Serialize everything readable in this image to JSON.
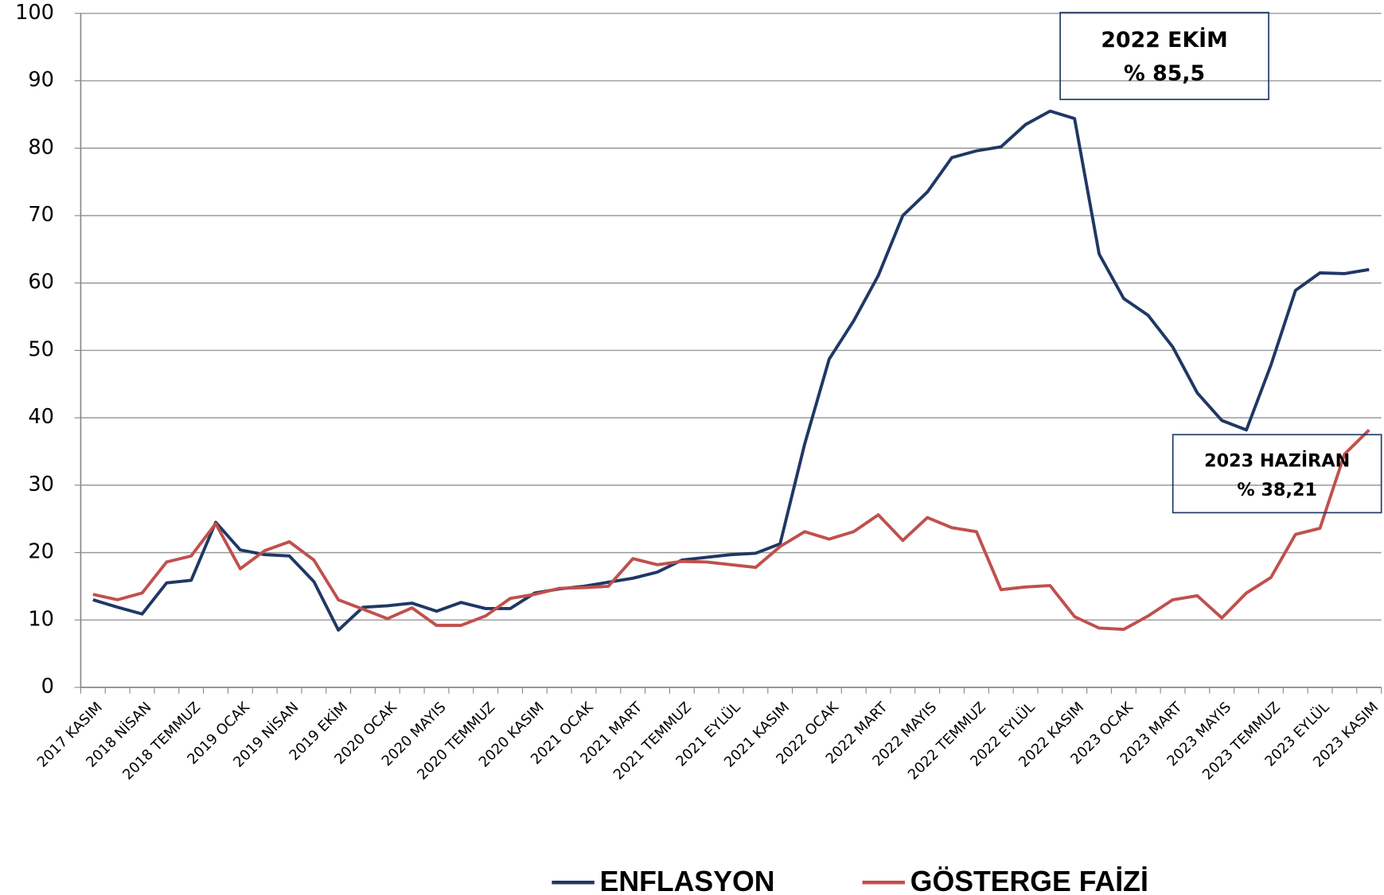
{
  "chart_data": {
    "type": "line",
    "categories": [
      "2017 KASIM",
      null,
      "2018 NİSAN",
      null,
      "2018 TEMMUZ",
      null,
      "2019 OCAK",
      null,
      "2019 NİSAN",
      null,
      "2019 EKİM",
      null,
      "2020 OCAK",
      null,
      "2020 MAYIS",
      null,
      "2020 TEMMUZ",
      null,
      "2020 KASIM",
      null,
      "2021 OCAK",
      null,
      "2021 MART",
      null,
      "2021 TEMMUZ",
      null,
      "2021 EYLÜL",
      null,
      "2021 KASIM",
      null,
      "2022 OCAK",
      null,
      "2022 MART",
      null,
      "2022 MAYIS",
      null,
      "2022 TEMMUZ",
      null,
      "2022 EYLÜL",
      null,
      "2022 KASIM",
      null,
      "2023 OCAK",
      null,
      "2023 MART",
      null,
      "2023 MAYIS",
      null,
      "2023 TEMMUZ",
      null,
      "2023 EYLÜL",
      null,
      "2023 KASIM"
    ],
    "series": [
      {
        "name": "ENFLASYON",
        "color": "#1f3864",
        "values": [
          13.0,
          11.9,
          10.9,
          15.5,
          15.9,
          24.5,
          20.4,
          19.7,
          19.5,
          15.7,
          8.5,
          11.9,
          12.1,
          12.5,
          11.3,
          12.6,
          11.7,
          11.7,
          14.0,
          14.6,
          15.0,
          15.6,
          16.2,
          17.1,
          18.9,
          19.3,
          19.7,
          19.9,
          21.3,
          36.1,
          48.7,
          54.4,
          61.1,
          70.0,
          73.5,
          78.6,
          79.6,
          80.2,
          83.5,
          85.5,
          84.4,
          64.3,
          57.7,
          55.2,
          50.5,
          43.7,
          39.6,
          38.2,
          47.8,
          58.9,
          61.5,
          61.4,
          62.0
        ]
      },
      {
        "name": "GÖSTERGE FAİZİ",
        "color": "#c0504d",
        "values": [
          13.8,
          13.0,
          14.0,
          18.6,
          19.5,
          24.3,
          17.6,
          20.3,
          21.6,
          18.9,
          13.0,
          11.6,
          10.2,
          11.8,
          9.2,
          9.2,
          10.6,
          13.2,
          13.8,
          14.7,
          14.8,
          15.0,
          19.1,
          18.2,
          18.7,
          18.6,
          18.2,
          17.8,
          20.9,
          23.1,
          22.0,
          23.1,
          25.6,
          21.8,
          25.2,
          23.7,
          23.1,
          14.5,
          14.9,
          15.1,
          10.5,
          8.8,
          8.6,
          10.6,
          13.0,
          13.6,
          10.3,
          14.0,
          16.3,
          22.7,
          23.6,
          34.6,
          38.2
        ]
      }
    ],
    "ylim": [
      0,
      100
    ],
    "yticks": [
      0,
      10,
      20,
      30,
      40,
      50,
      60,
      70,
      80,
      90,
      100
    ],
    "grid": true,
    "annotations": [
      {
        "lines": [
          "2022 EKİM",
          "% 85,5"
        ]
      },
      {
        "lines": [
          "2023 HAZİRAN",
          "% 38,21"
        ]
      }
    ],
    "legend": "bottom"
  }
}
